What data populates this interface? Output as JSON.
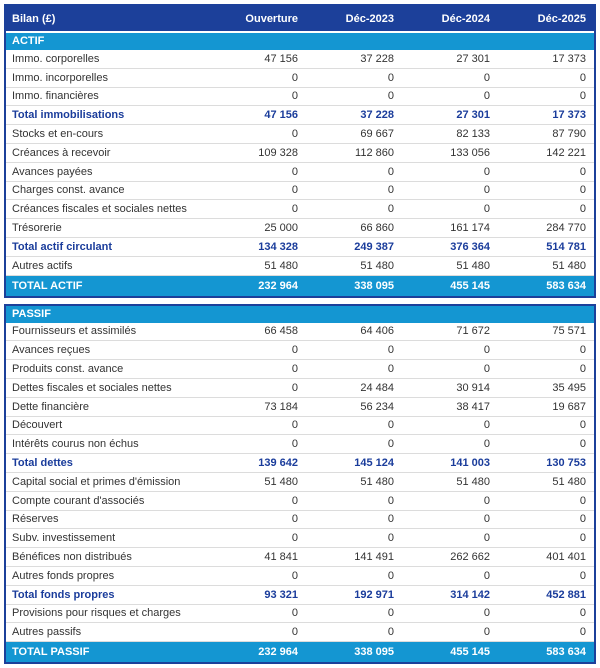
{
  "title": "Bilan (£)",
  "columns": [
    "Ouverture",
    "Déc-2023",
    "Déc-2024",
    "Déc-2025"
  ],
  "colors": {
    "header_navy": "#1C409A",
    "band_cyan": "#1496D2",
    "subtotal_text_navy": "#1A3C9B",
    "row_border_gray": "#DCDCDC",
    "body_text": "#333333"
  },
  "chart_data": {
    "type": "table",
    "title": "Bilan (£)",
    "columns": [
      "Ouverture",
      "Déc-2023",
      "Déc-2024",
      "Déc-2025"
    ],
    "sections": [
      {
        "name": "ACTIF",
        "rows": [
          {
            "label": "Immo. corporelles",
            "values": [
              47156,
              37228,
              27301,
              17373
            ]
          },
          {
            "label": "Immo. incorporelles",
            "values": [
              0,
              0,
              0,
              0
            ]
          },
          {
            "label": "Immo. financières",
            "values": [
              0,
              0,
              0,
              0
            ]
          },
          {
            "label": "Total immobilisations",
            "values": [
              47156,
              37228,
              27301,
              17373
            ],
            "type": "subtotal"
          },
          {
            "label": "Stocks et en-cours",
            "values": [
              0,
              69667,
              82133,
              87790
            ]
          },
          {
            "label": "Créances à recevoir",
            "values": [
              109328,
              112860,
              133056,
              142221
            ]
          },
          {
            "label": "Avances payées",
            "values": [
              0,
              0,
              0,
              0
            ]
          },
          {
            "label": "Charges const. avance",
            "values": [
              0,
              0,
              0,
              0
            ]
          },
          {
            "label": "Créances fiscales et sociales nettes",
            "values": [
              0,
              0,
              0,
              0
            ]
          },
          {
            "label": "Trésorerie",
            "values": [
              25000,
              66860,
              161174,
              284770
            ]
          },
          {
            "label": "Total actif circulant",
            "values": [
              134328,
              249387,
              376364,
              514781
            ],
            "type": "subtotal"
          },
          {
            "label": "Autres actifs",
            "values": [
              51480,
              51480,
              51480,
              51480
            ]
          }
        ],
        "total": {
          "label": "TOTAL ACTIF",
          "values": [
            232964,
            338095,
            455145,
            583634
          ]
        }
      },
      {
        "name": "PASSIF",
        "rows": [
          {
            "label": "Fournisseurs et assimilés",
            "values": [
              66458,
              64406,
              71672,
              75571
            ]
          },
          {
            "label": "Avances reçues",
            "values": [
              0,
              0,
              0,
              0
            ]
          },
          {
            "label": "Produits const. avance",
            "values": [
              0,
              0,
              0,
              0
            ]
          },
          {
            "label": "Dettes fiscales et sociales nettes",
            "values": [
              0,
              24484,
              30914,
              35495
            ]
          },
          {
            "label": "Dette financière",
            "values": [
              73184,
              56234,
              38417,
              19687
            ]
          },
          {
            "label": "Découvert",
            "values": [
              0,
              0,
              0,
              0
            ]
          },
          {
            "label": "Intérêts courus non échus",
            "values": [
              0,
              0,
              0,
              0
            ]
          },
          {
            "label": "Total dettes",
            "values": [
              139642,
              145124,
              141003,
              130753
            ],
            "type": "subtotal"
          },
          {
            "label": "Capital social et primes d'émission",
            "values": [
              51480,
              51480,
              51480,
              51480
            ]
          },
          {
            "label": "Compte courant d'associés",
            "values": [
              0,
              0,
              0,
              0
            ]
          },
          {
            "label": "Réserves",
            "values": [
              0,
              0,
              0,
              0
            ]
          },
          {
            "label": "Subv. investissement",
            "values": [
              0,
              0,
              0,
              0
            ]
          },
          {
            "label": "Bénéfices non distribués",
            "values": [
              41841,
              141491,
              262662,
              401401
            ]
          },
          {
            "label": "Autres fonds propres",
            "values": [
              0,
              0,
              0,
              0
            ]
          },
          {
            "label": "Total fonds propres",
            "values": [
              93321,
              192971,
              314142,
              452881
            ],
            "type": "subtotal"
          },
          {
            "label": "Provisions pour risques et charges",
            "values": [
              0,
              0,
              0,
              0
            ]
          },
          {
            "label": "Autres passifs",
            "values": [
              0,
              0,
              0,
              0
            ]
          }
        ],
        "total": {
          "label": "TOTAL PASSIF",
          "values": [
            232964,
            338095,
            455145,
            583634
          ]
        }
      }
    ]
  }
}
